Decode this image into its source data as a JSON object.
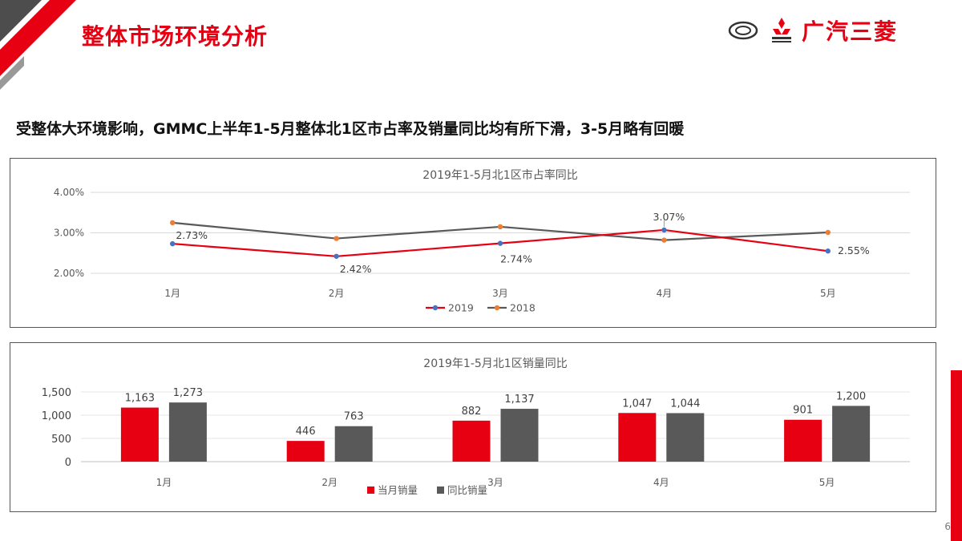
{
  "header": {
    "title": "整体市场环境分析",
    "brand": "广汽三菱",
    "brand_color": "#e60012"
  },
  "headline": "受整体大环境影响，GMMC上半年1-5月整体北1区市占率及销量同比均有所下滑，3-5月略有回暖",
  "page_number": "6",
  "colors": {
    "red": "#e60012",
    "gray": "#595959",
    "orange": "#ed7d31",
    "blue": "#4472c4"
  },
  "chart_data": [
    {
      "type": "line",
      "title": "2019年1-5月北1区市占率同比",
      "categories": [
        "1月",
        "2月",
        "3月",
        "4月",
        "5月"
      ],
      "ylim": [
        2.0,
        4.0
      ],
      "yticks": [
        "2.00%",
        "3.00%",
        "4.00%"
      ],
      "grid": true,
      "legend": "bottom",
      "series": [
        {
          "name": "2019",
          "values": [
            2.73,
            2.42,
            2.74,
            3.07,
            2.55
          ],
          "labels": [
            "2.73%",
            "2.42%",
            "2.74%",
            "3.07%",
            "2.55%"
          ]
        },
        {
          "name": "2018",
          "values": [
            3.25,
            2.86,
            3.15,
            2.82,
            3.01
          ]
        }
      ]
    },
    {
      "type": "bar",
      "title": "2019年1-5月北1区销量同比",
      "categories": [
        "1月",
        "2月",
        "3月",
        "4月",
        "5月"
      ],
      "ylim": [
        0,
        1500
      ],
      "yticks": [
        "0",
        "500",
        "1,000",
        "1,500"
      ],
      "grid": true,
      "legend": "bottom",
      "series": [
        {
          "name": "当月销量",
          "values": [
            1163,
            446,
            882,
            1047,
            901
          ],
          "labels": [
            "1,163",
            "446",
            "882",
            "1,047",
            "901"
          ]
        },
        {
          "name": "同比销量",
          "values": [
            1273,
            763,
            1137,
            1044,
            1200
          ],
          "labels": [
            "1,273",
            "763",
            "1,137",
            "1,044",
            "1,200"
          ]
        }
      ]
    }
  ]
}
